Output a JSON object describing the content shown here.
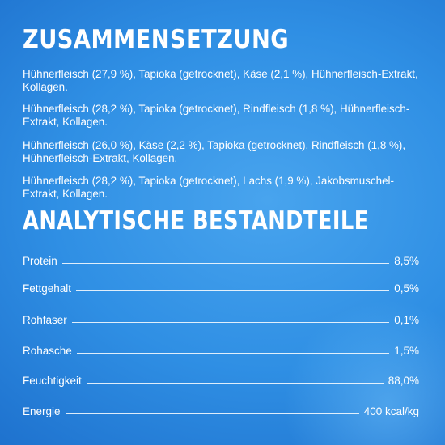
{
  "composition": {
    "title": "ZUSAMMENSETZUNG",
    "items": [
      "Hühnerfleisch (27,9 %), Tapioka (getrocknet), Käse (2,1 %), Hühnerfleisch-Extrakt, Kollagen.",
      "Hühnerfleisch (28,2 %), Tapioka (getrocknet), Rindfleisch (1,8 %), Hühnerfleisch-Extrakt, Kollagen.",
      "Hühnerfleisch (26,0 %), Käse (2,2 %), Tapioka (getrocknet), Rindfleisch (1,8 %), Hühnerfleisch-Extrakt, Kollagen.",
      "Hühnerfleisch (28,2 %), Tapioka (getrocknet), Lachs (1,9 %), Jakobsmuschel-Extrakt, Kollagen."
    ]
  },
  "analysis": {
    "title": "ANALYTISCHE BESTANDTEILE",
    "rows": [
      {
        "label": "Protein",
        "value": "8,5%"
      },
      {
        "label": "Fettgehalt",
        "value": "0,5%"
      },
      {
        "label": "Rohfaser",
        "value": "0,1%"
      },
      {
        "label": "Rohasche",
        "value": "1,5%"
      },
      {
        "label": "Feuchtigkeit",
        "value": "88,0%"
      },
      {
        "label": "Energie",
        "value": "400 kcal/kg"
      }
    ]
  },
  "colors": {
    "background": "#2f8fe4",
    "text": "#ffffff"
  }
}
